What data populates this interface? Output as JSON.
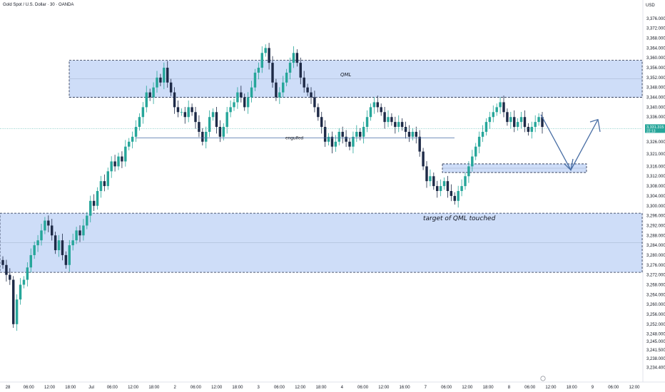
{
  "header": {
    "title": "Gold Spot / U.S. Dollar · 30 · OANDA",
    "currency": "USD"
  },
  "price_tag": {
    "value": "3,331.315",
    "countdown": "22:13"
  },
  "colors": {
    "up": "#26a69a",
    "down": "#1e2a47",
    "zone_fill": "#c9d9f7",
    "zone_line": "#1e2a47",
    "draw": "#4a6fa5",
    "price_line": "#26a69a"
  },
  "chart_data": {
    "type": "candlestick",
    "symbol": "Gold Spot / U.S. Dollar",
    "interval": "30",
    "source": "OANDA",
    "y_axis": {
      "unit": "USD",
      "range": [
        3232,
        3380
      ],
      "ticks": [
        "3,376.000",
        "3,372.000",
        "3,368.000",
        "3,364.000",
        "3,360.000",
        "3,356.000",
        "3,352.000",
        "3,348.000",
        "3,344.000",
        "3,340.000",
        "3,336.000",
        "3,331.315",
        "3,326.000",
        "3,321.000",
        "3,316.000",
        "3,312.000",
        "3,308.000",
        "3,304.000",
        "3,300.000",
        "3,296.000",
        "3,292.000",
        "3,288.000",
        "3,284.000",
        "3,280.000",
        "3,276.000",
        "3,272.000",
        "3,268.000",
        "3,264.000",
        "3,260.000",
        "3,256.000",
        "3,252.000",
        "3,248.000",
        "3,245.000",
        "3,241.500",
        "3,238.000",
        "3,234.400"
      ]
    },
    "x_axis": {
      "labels": [
        "28",
        "06:00",
        "12:00",
        "18:00",
        "Jul",
        "06:00",
        "12:00",
        "18:00",
        "2",
        "06:00",
        "12:00",
        "18:00",
        "3",
        "06:00",
        "12:00",
        "18:00",
        "4",
        "06:00",
        "12:00",
        "16:00",
        "7",
        "06:00",
        "12:00",
        "18:00",
        "8",
        "06:00",
        "12:00",
        "18:00",
        "9",
        "06:00",
        "12:00"
      ]
    },
    "candles_close": [
      3276,
      3272,
      3270,
      3252,
      3262,
      3268,
      3270,
      3275,
      3280,
      3284,
      3286,
      3290,
      3294,
      3292,
      3288,
      3282,
      3286,
      3280,
      3276,
      3284,
      3286,
      3290,
      3288,
      3292,
      3296,
      3302,
      3300,
      3306,
      3310,
      3308,
      3314,
      3318,
      3316,
      3320,
      3318,
      3324,
      3326,
      3328,
      3332,
      3336,
      3340,
      3346,
      3344,
      3348,
      3352,
      3350,
      3356,
      3350,
      3346,
      3340,
      3338,
      3338,
      3336,
      3340,
      3338,
      3334,
      3330,
      3326,
      3330,
      3336,
      3338,
      3332,
      3328,
      3332,
      3338,
      3340,
      3342,
      3346,
      3344,
      3340,
      3344,
      3348,
      3354,
      3356,
      3362,
      3364,
      3358,
      3350,
      3344,
      3346,
      3350,
      3354,
      3358,
      3362,
      3358,
      3352,
      3348,
      3346,
      3344,
      3340,
      3336,
      3332,
      3326,
      3328,
      3324,
      3326,
      3330,
      3328,
      3326,
      3324,
      3328,
      3330,
      3328,
      3332,
      3336,
      3340,
      3342,
      3340,
      3338,
      3334,
      3336,
      3334,
      3332,
      3334,
      3332,
      3330,
      3328,
      3330,
      3328,
      3322,
      3316,
      3310,
      3312,
      3308,
      3306,
      3308,
      3310,
      3306,
      3304,
      3302,
      3306,
      3308,
      3312,
      3316,
      3320,
      3324,
      3328,
      3330,
      3334,
      3336,
      3338,
      3340,
      3342,
      3338,
      3334,
      3336,
      3332,
      3334,
      3336,
      3332,
      3330,
      3332,
      3334,
      3336,
      3332
    ],
    "zones": [
      {
        "label": "QML",
        "from": 3344,
        "to": 3359
      },
      {
        "label": "",
        "from": 3273,
        "to": 3297
      },
      {
        "label": "",
        "from": 3313.5,
        "to": 3317
      }
    ],
    "annotations": {
      "engulfed": "engulfed",
      "qml_target": "target of QML touched",
      "qml": "QML"
    },
    "last_price": 3331.315
  }
}
